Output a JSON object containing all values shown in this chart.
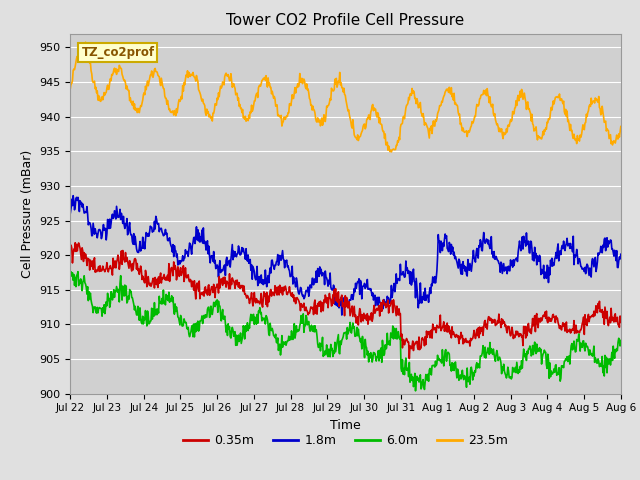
{
  "title": "Tower CO2 Profile Cell Pressure",
  "xlabel": "Time",
  "ylabel": "Cell Pressure (mBar)",
  "ylim": [
    900,
    952
  ],
  "yticks": [
    900,
    905,
    910,
    915,
    920,
    925,
    930,
    935,
    940,
    945,
    950
  ],
  "background_color": "#e0e0e0",
  "plot_bg_color": "#d0d0d0",
  "legend_label": "TZ_co2prof",
  "legend_bg": "#ffffcc",
  "legend_border": "#ccaa00",
  "series": [
    {
      "label": "0.35m",
      "color": "#cc0000",
      "lw": 1.2
    },
    {
      "label": "1.8m",
      "color": "#0000cc",
      "lw": 1.2
    },
    {
      "label": "6.0m",
      "color": "#00bb00",
      "lw": 1.2
    },
    {
      "label": "23.5m",
      "color": "#ffaa00",
      "lw": 1.2
    }
  ],
  "x_tick_labels": [
    "Jul 22",
    "Jul 23",
    "Jul 24",
    "Jul 25",
    "Jul 26",
    "Jul 27",
    "Jul 28",
    "Jul 29",
    "Jul 30",
    "Jul 31",
    "Aug 1",
    "Aug 2",
    "Aug 3",
    "Aug 4",
    "Aug 5",
    "Aug 6"
  ],
  "n_ticks": 16,
  "figsize": [
    6.4,
    4.8
  ],
  "dpi": 100
}
